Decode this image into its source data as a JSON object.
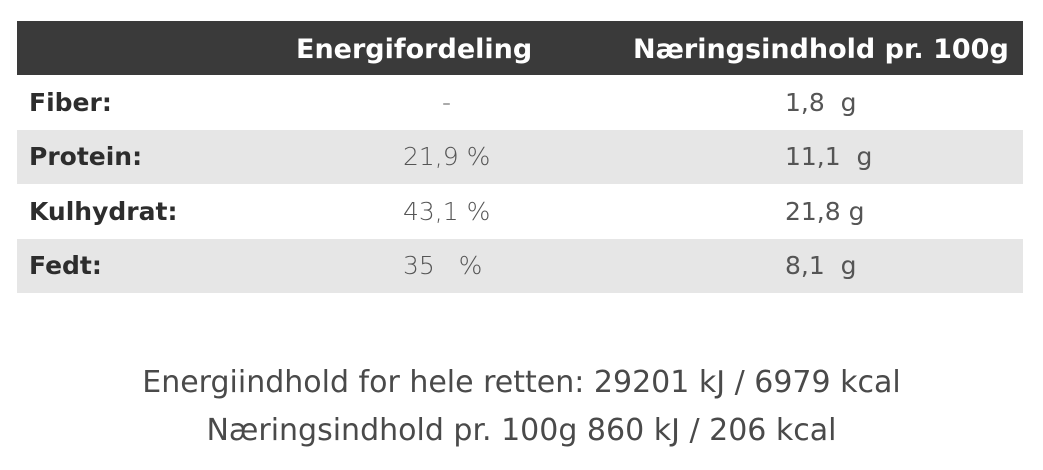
{
  "table": {
    "headers": {
      "label": "",
      "energy": "Energifordeling",
      "nutrition": "Næringsindhold pr. 100g"
    },
    "rows": [
      {
        "label": "Fiber:",
        "energy": "-",
        "nutrition": "1,8  g"
      },
      {
        "label": "Protein:",
        "energy": "21,9 %",
        "nutrition": "11,1  g"
      },
      {
        "label": "Kulhydrat:",
        "energy": "43,1 %",
        "nutrition": "21,8 g"
      },
      {
        "label": "Fedt:",
        "energy": "35   %",
        "nutrition": "8,1  g"
      }
    ]
  },
  "summary": {
    "line1": "Energiindhold for hele retten: 29201 kJ / 6979 kcal",
    "line2": "Næringsindhold pr. 100g 860 kJ / 206 kcal"
  },
  "colors": {
    "header_bg": "#3a3a3a",
    "header_text": "#ffffff",
    "row_shade": "#e6e6e6",
    "text": "#3a3a3a"
  }
}
